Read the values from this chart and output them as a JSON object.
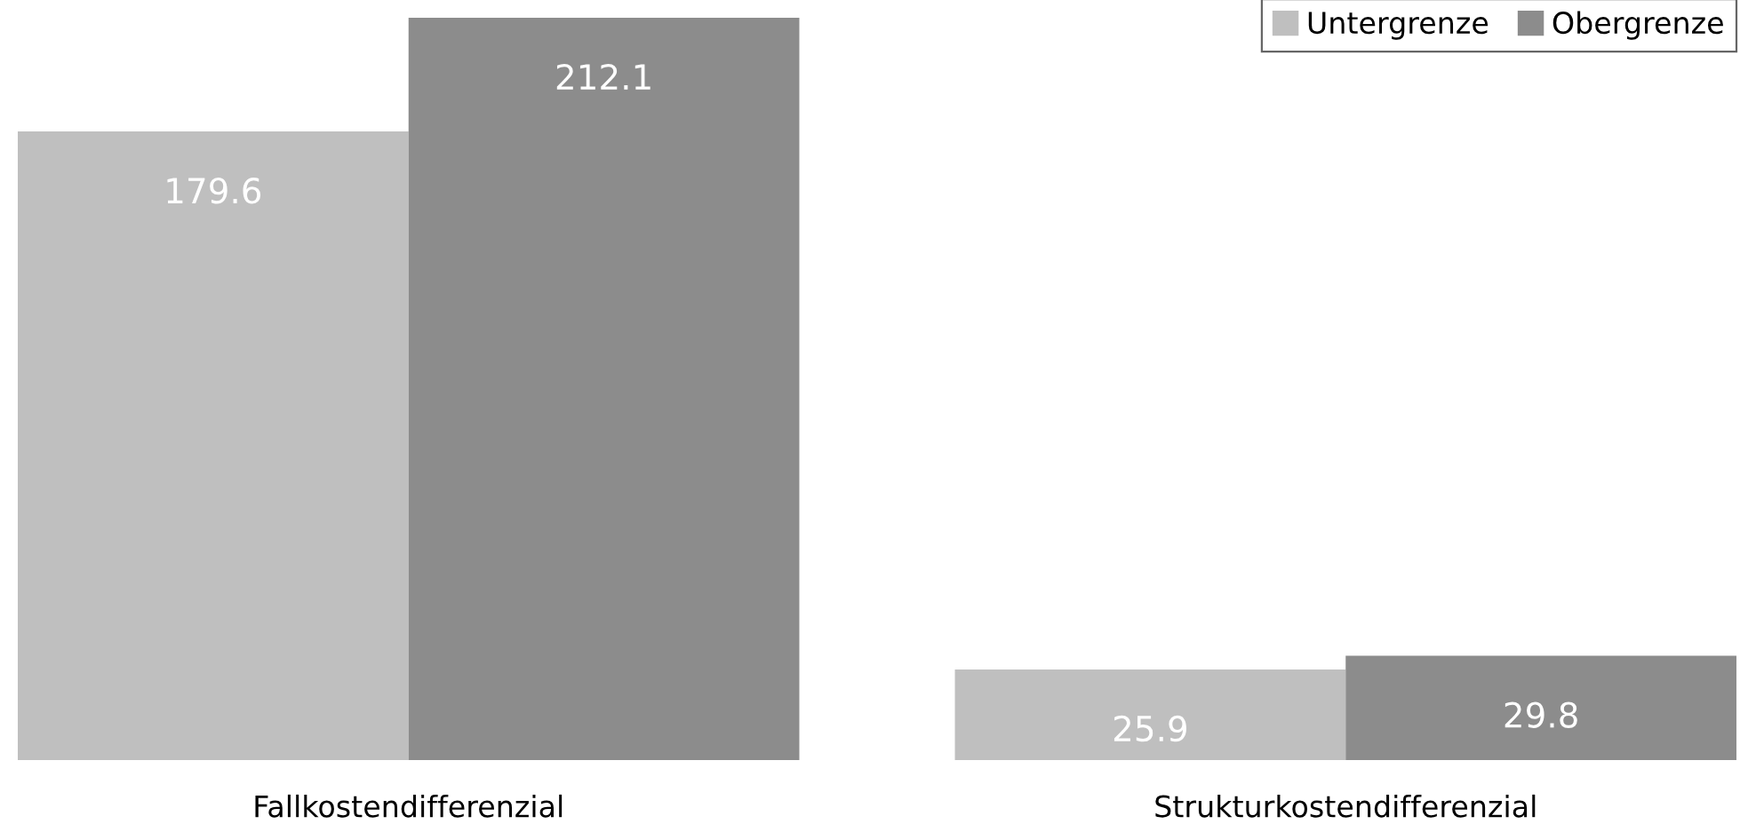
{
  "chart_data": {
    "type": "bar",
    "categories": [
      "Fallkostendifferenzial",
      "Strukturkostendifferenzial"
    ],
    "series": [
      {
        "name": "Untergrenze",
        "color": "#bfbfbf",
        "values": [
          179.6,
          25.9
        ]
      },
      {
        "name": "Obergrenze",
        "color": "#8c8c8c",
        "values": [
          212.1,
          29.8
        ]
      }
    ],
    "data_labels": true,
    "legend": "top right",
    "grid": false
  }
}
